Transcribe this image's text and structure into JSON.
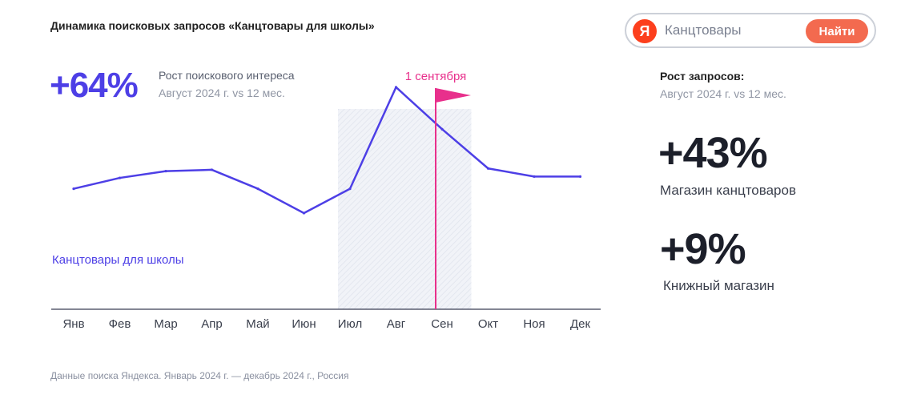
{
  "header": {
    "title": "Динамика поисковых запросов «Канцтовары для школы»"
  },
  "growth": {
    "value": "+64%",
    "label": "Рост поискового интереса",
    "period": "Август 2024 г. vs 12 мес."
  },
  "search": {
    "logo": "Я",
    "query": "Канцтовары",
    "button_label": "Найти"
  },
  "right_panel": {
    "heading": "Рост запросов:",
    "period": "Август 2024 г. vs 12 мес.",
    "stats": [
      {
        "value": "+43%",
        "label": "Магазин канцтоваров"
      },
      {
        "value": "+9%",
        "label": "Книжный магазин"
      }
    ]
  },
  "chart_data": {
    "type": "line",
    "categories": [
      "Янв",
      "Фев",
      "Мар",
      "Апр",
      "Май",
      "Июн",
      "Июл",
      "Авг",
      "Сен",
      "Окт",
      "Ноя",
      "Дек"
    ],
    "series": [
      {
        "name": "Канцтовары для школы",
        "values": [
          0.89,
          0.97,
          1.02,
          1.03,
          0.89,
          0.71,
          0.89,
          1.64,
          1.33,
          1.04,
          0.98,
          0.98
        ]
      }
    ],
    "ylim": [
      0,
      2
    ],
    "highlight_range": [
      "Июл",
      "Сен"
    ],
    "marker": {
      "label": "1 сентября",
      "category": "Сен"
    },
    "series_color": "#4d3fe6",
    "marker_color": "#e8308c",
    "grid": false
  },
  "footer": {
    "source": "Данные поиска Яндекса. Январь 2024 г. — декабрь 2024 г., Россия"
  }
}
